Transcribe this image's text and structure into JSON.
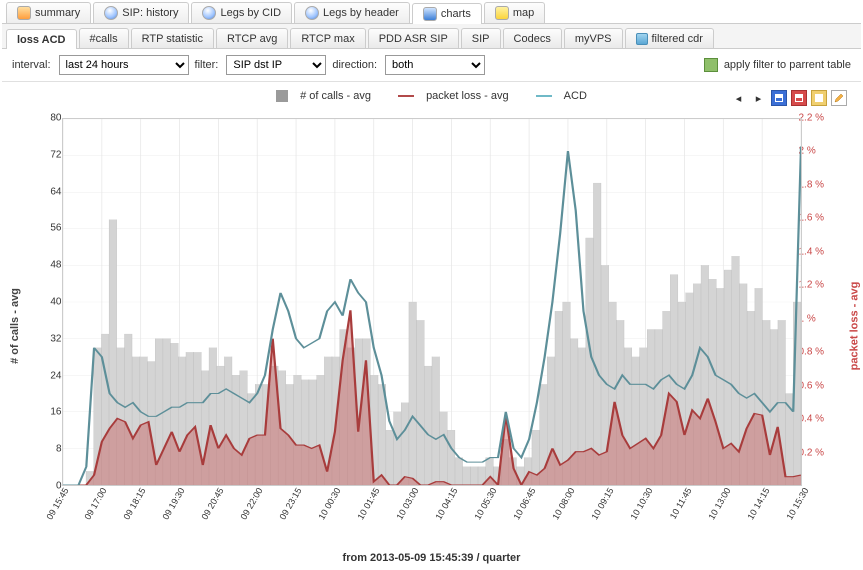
{
  "topTabs": [
    {
      "label": "summary",
      "icon": "sum",
      "active": false
    },
    {
      "label": "SIP: history",
      "icon": "bulb",
      "active": false
    },
    {
      "label": "Legs by CID",
      "icon": "bulb",
      "active": false
    },
    {
      "label": "Legs by header",
      "icon": "bulb",
      "active": false
    },
    {
      "label": "charts",
      "icon": "chart",
      "active": true
    },
    {
      "label": "map",
      "icon": "map",
      "active": false
    }
  ],
  "subTabs": [
    {
      "label": "loss ACD",
      "active": true
    },
    {
      "label": "#calls",
      "active": false
    },
    {
      "label": "RTP statistic",
      "active": false
    },
    {
      "label": "RTCP avg",
      "active": false
    },
    {
      "label": "RTCP max",
      "active": false
    },
    {
      "label": "PDD ASR SIP",
      "active": false
    },
    {
      "label": "SIP",
      "active": false
    },
    {
      "label": "Codecs",
      "active": false
    },
    {
      "label": "myVPS",
      "active": false
    },
    {
      "label": "filtered cdr",
      "active": false,
      "icon": "filter"
    }
  ],
  "toolbar": {
    "intervalLabel": "interval:",
    "intervalValue": "last 24 hours",
    "filterLabel": "filter:",
    "filterValue": "SIP dst IP",
    "directionLabel": "direction:",
    "directionValue": "both",
    "applyLabel": "apply filter to parrent table"
  },
  "chart": {
    "legend": {
      "calls": "# of calls - avg",
      "loss": "packet loss - avg",
      "acd": "ACD",
      "callsColor": "#9a9a9a",
      "lossColor": "#b24a4a",
      "acdColor": "#6fb9c7"
    },
    "colors": {
      "bars": "#d4d4d4",
      "barsStroke": "#bdbdbd",
      "lossFill": "rgba(200,95,95,0.45)",
      "lossLine": "#a83c3c",
      "acdLine": "#5d8f99",
      "gridline": "#e6e6e6",
      "rightAxis": "#c94747"
    },
    "yLeft": {
      "label": "# of calls - avg",
      "min": 0,
      "max": 80,
      "ticks": [
        0,
        8,
        16,
        24,
        32,
        40,
        48,
        56,
        64,
        72,
        80
      ]
    },
    "yRight": {
      "label": "packet loss - avg",
      "min": 0,
      "max": 2.2,
      "ticks": [
        0.2,
        0.4,
        0.6,
        0.8,
        1.0,
        1.2,
        1.4,
        1.6,
        1.8,
        2.0,
        2.2
      ],
      "suffix": " %"
    },
    "xTicks": [
      "09 15:45",
      "09 17:00",
      "09 18:15",
      "09 19:30",
      "09 20:45",
      "09 22:00",
      "09 23:15",
      "10 00:30",
      "10 01:45",
      "10 03:00",
      "10 04:15",
      "10 05:30",
      "10 06:45",
      "10 08:00",
      "10 09:15",
      "10 10:30",
      "10 11:45",
      "10 13:00",
      "10 14:15",
      "10 15:30"
    ],
    "xLabel": "from 2013-05-09 15:45:39 / quarter",
    "bars": [
      0,
      0,
      0,
      3,
      30,
      33,
      58,
      30,
      33,
      28,
      28,
      27,
      32,
      32,
      31,
      28,
      29,
      29,
      25,
      30,
      26,
      28,
      24,
      25,
      20,
      22,
      22,
      26,
      25,
      22,
      24,
      23,
      23,
      24,
      28,
      28,
      34,
      30,
      32,
      32,
      24,
      22,
      12,
      16,
      18,
      40,
      36,
      26,
      28,
      16,
      12,
      6,
      4,
      4,
      4,
      6,
      4,
      10,
      6,
      4,
      6,
      12,
      22,
      28,
      38,
      40,
      32,
      30,
      54,
      66,
      48,
      40,
      36,
      30,
      28,
      30,
      34,
      34,
      38,
      46,
      40,
      42,
      44,
      48,
      45,
      43,
      47,
      50,
      44,
      38,
      43,
      36,
      34,
      36,
      20,
      40
    ],
    "lossPoints": [
      0,
      0,
      0,
      0,
      0.06,
      0.26,
      0.34,
      0.4,
      0.38,
      0.28,
      0.36,
      0.38,
      0.12,
      0.22,
      0.32,
      0.2,
      0.3,
      0.35,
      0.12,
      0.36,
      0.22,
      0.3,
      0.22,
      0.18,
      0.28,
      0.3,
      0.3,
      0.88,
      0.34,
      0.3,
      0.24,
      0.24,
      0.22,
      0.24,
      0.08,
      0.32,
      0.75,
      1.05,
      0.32,
      0.75,
      0.02,
      0.06,
      0,
      0,
      0.05,
      0.04,
      0,
      0,
      0.02,
      0.02,
      0,
      0,
      0,
      0,
      0,
      0.05,
      0,
      0.42,
      0.1,
      0,
      0.08,
      0.06,
      0.1,
      0.22,
      0.12,
      0.15,
      0.2,
      0.2,
      0.22,
      0.18,
      0.2,
      0.5,
      0.3,
      0.22,
      0.25,
      0.28,
      0.22,
      0.3,
      0.55,
      0.5,
      0.3,
      0.45,
      0.4,
      0.52,
      0.38,
      0.22,
      0.25,
      0.2,
      0.34,
      0.43,
      0.42,
      0.18,
      0.35,
      0.05,
      0.05,
      0.06
    ],
    "acdPoints": [
      0,
      0,
      0,
      4,
      30,
      28,
      20,
      18,
      17,
      18,
      16,
      15,
      15,
      16,
      17,
      17,
      18,
      18,
      18,
      20,
      20,
      21,
      20,
      19,
      18,
      20,
      24,
      34,
      42,
      38,
      32,
      30,
      31,
      32,
      38,
      40,
      37,
      45,
      42,
      40,
      30,
      24,
      14,
      10,
      12,
      15,
      13,
      11,
      10,
      11,
      8,
      6,
      5,
      5,
      5,
      6,
      6,
      16,
      8,
      6,
      10,
      18,
      28,
      40,
      55,
      73,
      60,
      38,
      28,
      24,
      22,
      21,
      24,
      22,
      22,
      22,
      21,
      23,
      24,
      22,
      21,
      24,
      30,
      28,
      24,
      23,
      22,
      20,
      19,
      20,
      18,
      16,
      18,
      18,
      16,
      74
    ]
  }
}
